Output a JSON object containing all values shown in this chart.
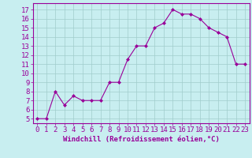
{
  "x": [
    0,
    1,
    2,
    3,
    4,
    5,
    6,
    7,
    8,
    9,
    10,
    11,
    12,
    13,
    14,
    15,
    16,
    17,
    18,
    19,
    20,
    21,
    22,
    23
  ],
  "y": [
    5,
    5,
    8,
    6.5,
    7.5,
    7,
    7,
    7,
    9,
    9,
    11.5,
    13,
    13,
    15,
    15.5,
    17,
    16.5,
    16.5,
    16,
    15,
    14.5,
    14,
    11,
    11
  ],
  "line_color": "#990099",
  "marker_color": "#990099",
  "bg_color": "#c8eef0",
  "grid_color": "#a0cccc",
  "xlabel": "Windchill (Refroidissement éolien,°C)",
  "ylabel_ticks": [
    5,
    6,
    7,
    8,
    9,
    10,
    11,
    12,
    13,
    14,
    15,
    16,
    17
  ],
  "xtick_labels": [
    "0",
    "1",
    "2",
    "3",
    "4",
    "5",
    "6",
    "7",
    "8",
    "9",
    "10",
    "11",
    "12",
    "13",
    "14",
    "15",
    "16",
    "17",
    "18",
    "19",
    "20",
    "21",
    "22",
    "23"
  ],
  "ylim": [
    4.5,
    17.7
  ],
  "xlim": [
    -0.5,
    23.5
  ],
  "font_size_xlabel": 6.5,
  "font_size_ticks": 6.5
}
